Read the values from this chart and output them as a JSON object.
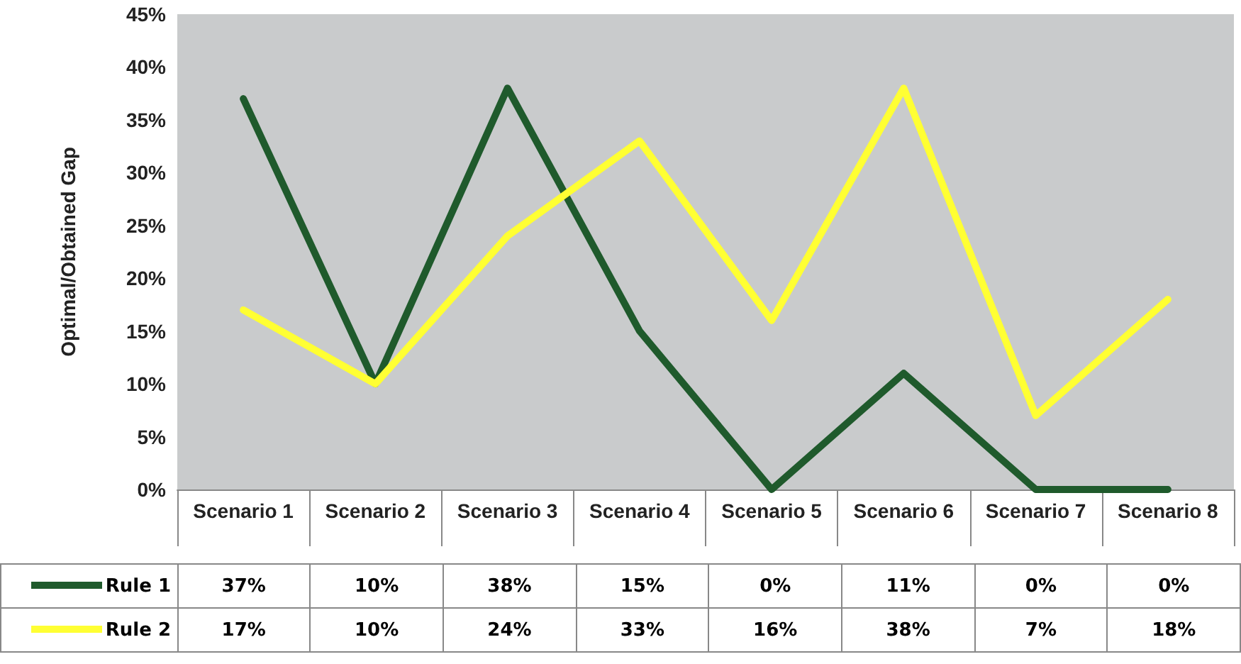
{
  "chart_data": {
    "type": "line",
    "ylabel": "Optimal/Obtained Gap",
    "categories": [
      "Scenario 1",
      "Scenario 2",
      "Scenario 3",
      "Scenario 4",
      "Scenario 5",
      "Scenario 6",
      "Scenario 7",
      "Scenario 8"
    ],
    "series": [
      {
        "name": "Rule 1",
        "color": "#1f5a2c",
        "values": [
          37,
          10,
          38,
          15,
          0,
          11,
          0,
          0
        ],
        "value_labels": [
          "37%",
          "10%",
          "38%",
          "15%",
          "0%",
          "11%",
          "0%",
          "0%"
        ]
      },
      {
        "name": "Rule 2",
        "color": "#ffff33",
        "values": [
          17,
          10,
          24,
          33,
          16,
          38,
          7,
          18
        ],
        "value_labels": [
          "17%",
          "10%",
          "24%",
          "33%",
          "16%",
          "38%",
          "7%",
          "18%"
        ]
      }
    ],
    "ylim": [
      0,
      45
    ],
    "yticks": [
      {
        "value": 0,
        "label": "0%"
      },
      {
        "value": 5,
        "label": "5%"
      },
      {
        "value": 10,
        "label": "10%"
      },
      {
        "value": 15,
        "label": "15%"
      },
      {
        "value": 20,
        "label": "20%"
      },
      {
        "value": 25,
        "label": "25%"
      },
      {
        "value": 30,
        "label": "30%"
      },
      {
        "value": 35,
        "label": "35%"
      },
      {
        "value": 40,
        "label": "40%"
      },
      {
        "value": 45,
        "label": "45%"
      }
    ],
    "grid": false,
    "legend": "bottom",
    "marker": "none",
    "line_style": "solid"
  }
}
